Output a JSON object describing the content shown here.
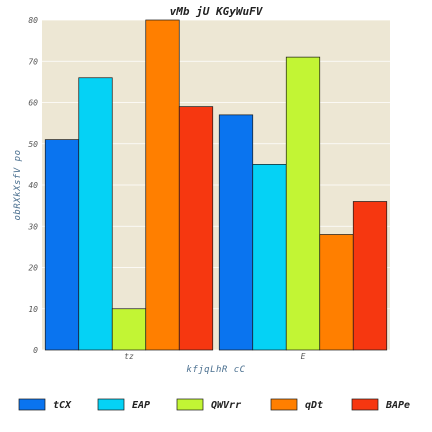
{
  "chart_data": {
    "type": "bar",
    "title": "vMb jU KGyWuFV",
    "xlabel": "kfjqLhR  cC",
    "ylabel": "obRXkXsfV po",
    "categories": [
      "tz",
      "E"
    ],
    "ylim": [
      0,
      80
    ],
    "yticks": [
      0,
      10,
      20,
      30,
      40,
      50,
      60,
      70,
      80
    ],
    "grid": true,
    "legend_position": "bottom",
    "background": "#ede7d4",
    "series": [
      {
        "name": "tCX",
        "color": "#0a74ef",
        "values": [
          51,
          57
        ]
      },
      {
        "name": "EAP",
        "color": "#05d2f5",
        "values": [
          66,
          45
        ]
      },
      {
        "name": "QWVrr",
        "color": "#c2f534",
        "values": [
          10,
          71
        ]
      },
      {
        "name": "qDt",
        "color": "#ff7f00",
        "values": [
          80,
          28
        ]
      },
      {
        "name": "BAPe",
        "color": "#f63710",
        "values": [
          59,
          36
        ]
      }
    ]
  }
}
